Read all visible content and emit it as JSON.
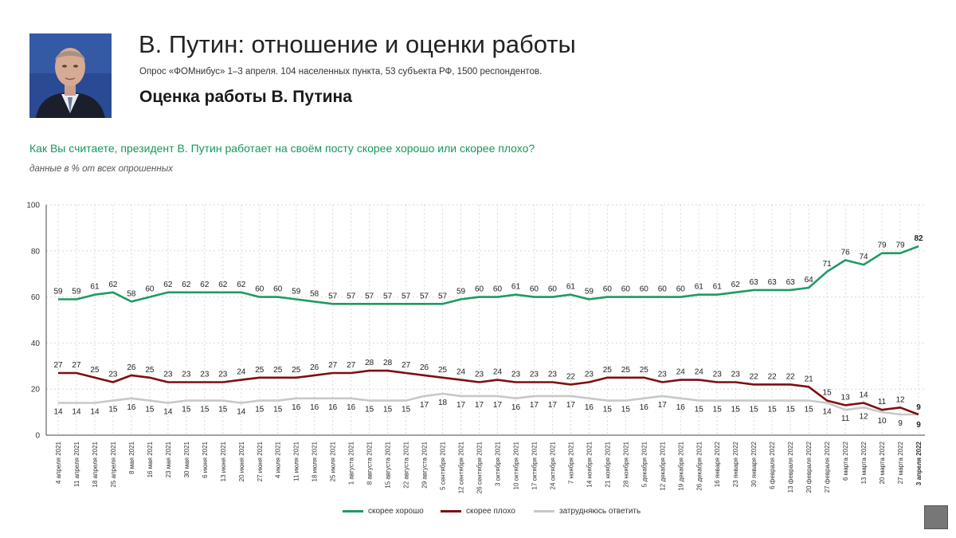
{
  "header": {
    "title": "В. Путин: отношение и оценки работы",
    "subtitle": "Опрос «ФОМнибус» 1–3 апреля. 104 населенных пункта, 53 субъекта РФ, 1500 респондентов.",
    "section_title": "Оценка работы В. Путина"
  },
  "question": "Как Вы считаете, президент В. Путин работает на своём посту скорее хорошо или скорее плохо?",
  "note": "данные в % от всех опрошенных",
  "colors": {
    "good": "#1f9a63",
    "bad": "#7d0f12",
    "hard": "#c8c8c8",
    "accent": "#17985a"
  },
  "chart_data": {
    "type": "line",
    "ylim": [
      0,
      100
    ],
    "yticks": [
      0,
      20,
      40,
      60,
      80,
      100
    ],
    "grid": true,
    "legend_position": "bottom",
    "categories": [
      "4 апреля 2021",
      "11 апреля 2021",
      "18 апреля 2021",
      "25 апреля 2021",
      "8 мая 2021",
      "16 мая 2021",
      "23 мая 2021",
      "30 мая 2021",
      "6 июня 2021",
      "13 июня 2021",
      "20 июня 2021",
      "27 июня 2021",
      "4 июля 2021",
      "11 июля 2021",
      "18 июля 2021",
      "25 июля 2021",
      "1 августа 2021",
      "8 августа 2021",
      "15 августа 2021",
      "22 августа 2021",
      "29 августа 2021",
      "5 сентября 2021",
      "12 сентября 2021",
      "26 сентября 2021",
      "3 октября 2021",
      "10 октября 2021",
      "17 октября 2021",
      "24 октября 2021",
      "7 ноября 2021",
      "14 ноября 2021",
      "21 ноября 2021",
      "28 ноября 2021",
      "5 декабря 2021",
      "12 декабря 2021",
      "19 декабря 2021",
      "26 декабря 2021",
      "16 января 2022",
      "23 января 2022",
      "30 января 2022",
      "6 февраля 2022",
      "13 февраля 2022",
      "20 февраля 2022",
      "27 февраля 2022",
      "6 марта 2022",
      "13 марта 2022",
      "20 марта 2022",
      "27 марта 2022",
      "3 апреля 2022"
    ],
    "series": [
      {
        "name": "скорее хорошо",
        "values": [
          59,
          59,
          61,
          62,
          58,
          60,
          62,
          62,
          62,
          62,
          62,
          60,
          60,
          59,
          58,
          57,
          57,
          57,
          57,
          57,
          57,
          57,
          59,
          60,
          60,
          61,
          60,
          60,
          61,
          59,
          60,
          60,
          60,
          60,
          60,
          61,
          61,
          62,
          63,
          63,
          63,
          64,
          71,
          76,
          74,
          79,
          79,
          82
        ]
      },
      {
        "name": "скорее плохо",
        "values": [
          27,
          27,
          25,
          23,
          26,
          25,
          23,
          23,
          23,
          23,
          24,
          25,
          25,
          25,
          26,
          27,
          27,
          28,
          28,
          27,
          26,
          25,
          24,
          23,
          24,
          23,
          23,
          23,
          22,
          23,
          25,
          25,
          25,
          23,
          24,
          24,
          23,
          23,
          22,
          22,
          22,
          21,
          15,
          13,
          14,
          11,
          12,
          9
        ]
      },
      {
        "name": "затрудняюсь ответить",
        "values": [
          14,
          14,
          14,
          15,
          16,
          15,
          14,
          15,
          15,
          15,
          14,
          15,
          15,
          16,
          16,
          16,
          16,
          15,
          15,
          15,
          17,
          18,
          17,
          17,
          17,
          16,
          17,
          17,
          17,
          16,
          15,
          15,
          16,
          17,
          16,
          15,
          15,
          15,
          15,
          15,
          15,
          15,
          14,
          11,
          12,
          10,
          9,
          9
        ]
      }
    ]
  }
}
